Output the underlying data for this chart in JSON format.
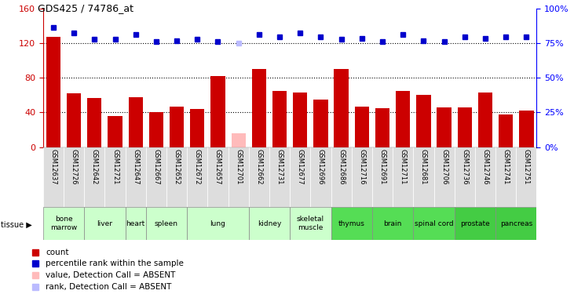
{
  "title": "GDS425 / 74786_at",
  "gsm_labels": [
    "GSM12637",
    "GSM12726",
    "GSM12642",
    "GSM12721",
    "GSM12647",
    "GSM12667",
    "GSM12652",
    "GSM12672",
    "GSM12657",
    "GSM12701",
    "GSM12662",
    "GSM12731",
    "GSM12677",
    "GSM12696",
    "GSM12686",
    "GSM12716",
    "GSM12691",
    "GSM12711",
    "GSM12681",
    "GSM12706",
    "GSM12736",
    "GSM12746",
    "GSM12741",
    "GSM12751"
  ],
  "bar_values": [
    128,
    62,
    57,
    36,
    58,
    40,
    47,
    44,
    82,
    16,
    90,
    65,
    63,
    55,
    90,
    47,
    45,
    65,
    60,
    46,
    46,
    63,
    38,
    42
  ],
  "bar_absent": [
    false,
    false,
    false,
    false,
    false,
    false,
    false,
    false,
    false,
    true,
    false,
    false,
    false,
    false,
    false,
    false,
    false,
    false,
    false,
    false,
    false,
    false,
    false,
    false
  ],
  "rank_values": [
    138,
    132,
    125,
    125,
    130,
    122,
    123,
    125,
    122,
    120,
    130,
    128,
    132,
    128,
    125,
    126,
    122,
    130,
    123,
    122,
    128,
    126,
    128,
    128
  ],
  "rank_absent": [
    false,
    false,
    false,
    false,
    false,
    false,
    false,
    false,
    false,
    true,
    false,
    false,
    false,
    false,
    false,
    false,
    false,
    false,
    false,
    false,
    false,
    false,
    false,
    false
  ],
  "tissues": [
    {
      "label": "bone\nmarrow",
      "start": 0,
      "end": 2,
      "color": "#ccffcc"
    },
    {
      "label": "liver",
      "start": 2,
      "end": 4,
      "color": "#ccffcc"
    },
    {
      "label": "heart",
      "start": 4,
      "end": 5,
      "color": "#ccffcc"
    },
    {
      "label": "spleen",
      "start": 5,
      "end": 7,
      "color": "#ccffcc"
    },
    {
      "label": "lung",
      "start": 7,
      "end": 10,
      "color": "#ccffcc"
    },
    {
      "label": "kidney",
      "start": 10,
      "end": 12,
      "color": "#ccffcc"
    },
    {
      "label": "skeletal\nmuscle",
      "start": 12,
      "end": 14,
      "color": "#ccffcc"
    },
    {
      "label": "thymus",
      "start": 14,
      "end": 16,
      "color": "#55dd55"
    },
    {
      "label": "brain",
      "start": 16,
      "end": 18,
      "color": "#55dd55"
    },
    {
      "label": "spinal cord",
      "start": 18,
      "end": 20,
      "color": "#55dd55"
    },
    {
      "label": "prostate",
      "start": 20,
      "end": 22,
      "color": "#44cc44"
    },
    {
      "label": "pancreas",
      "start": 22,
      "end": 24,
      "color": "#44cc44"
    }
  ],
  "ylim_left": [
    0,
    160
  ],
  "bar_color": "#cc0000",
  "bar_absent_color": "#ffbbbb",
  "rank_color": "#0000cc",
  "rank_absent_color": "#bbbbff",
  "grid_values": [
    40,
    80,
    120
  ],
  "right_ticks": [
    0,
    25,
    50,
    75,
    100
  ],
  "right_tick_positions": [
    0,
    40,
    80,
    120,
    160
  ],
  "xtick_bg": "#dddddd"
}
